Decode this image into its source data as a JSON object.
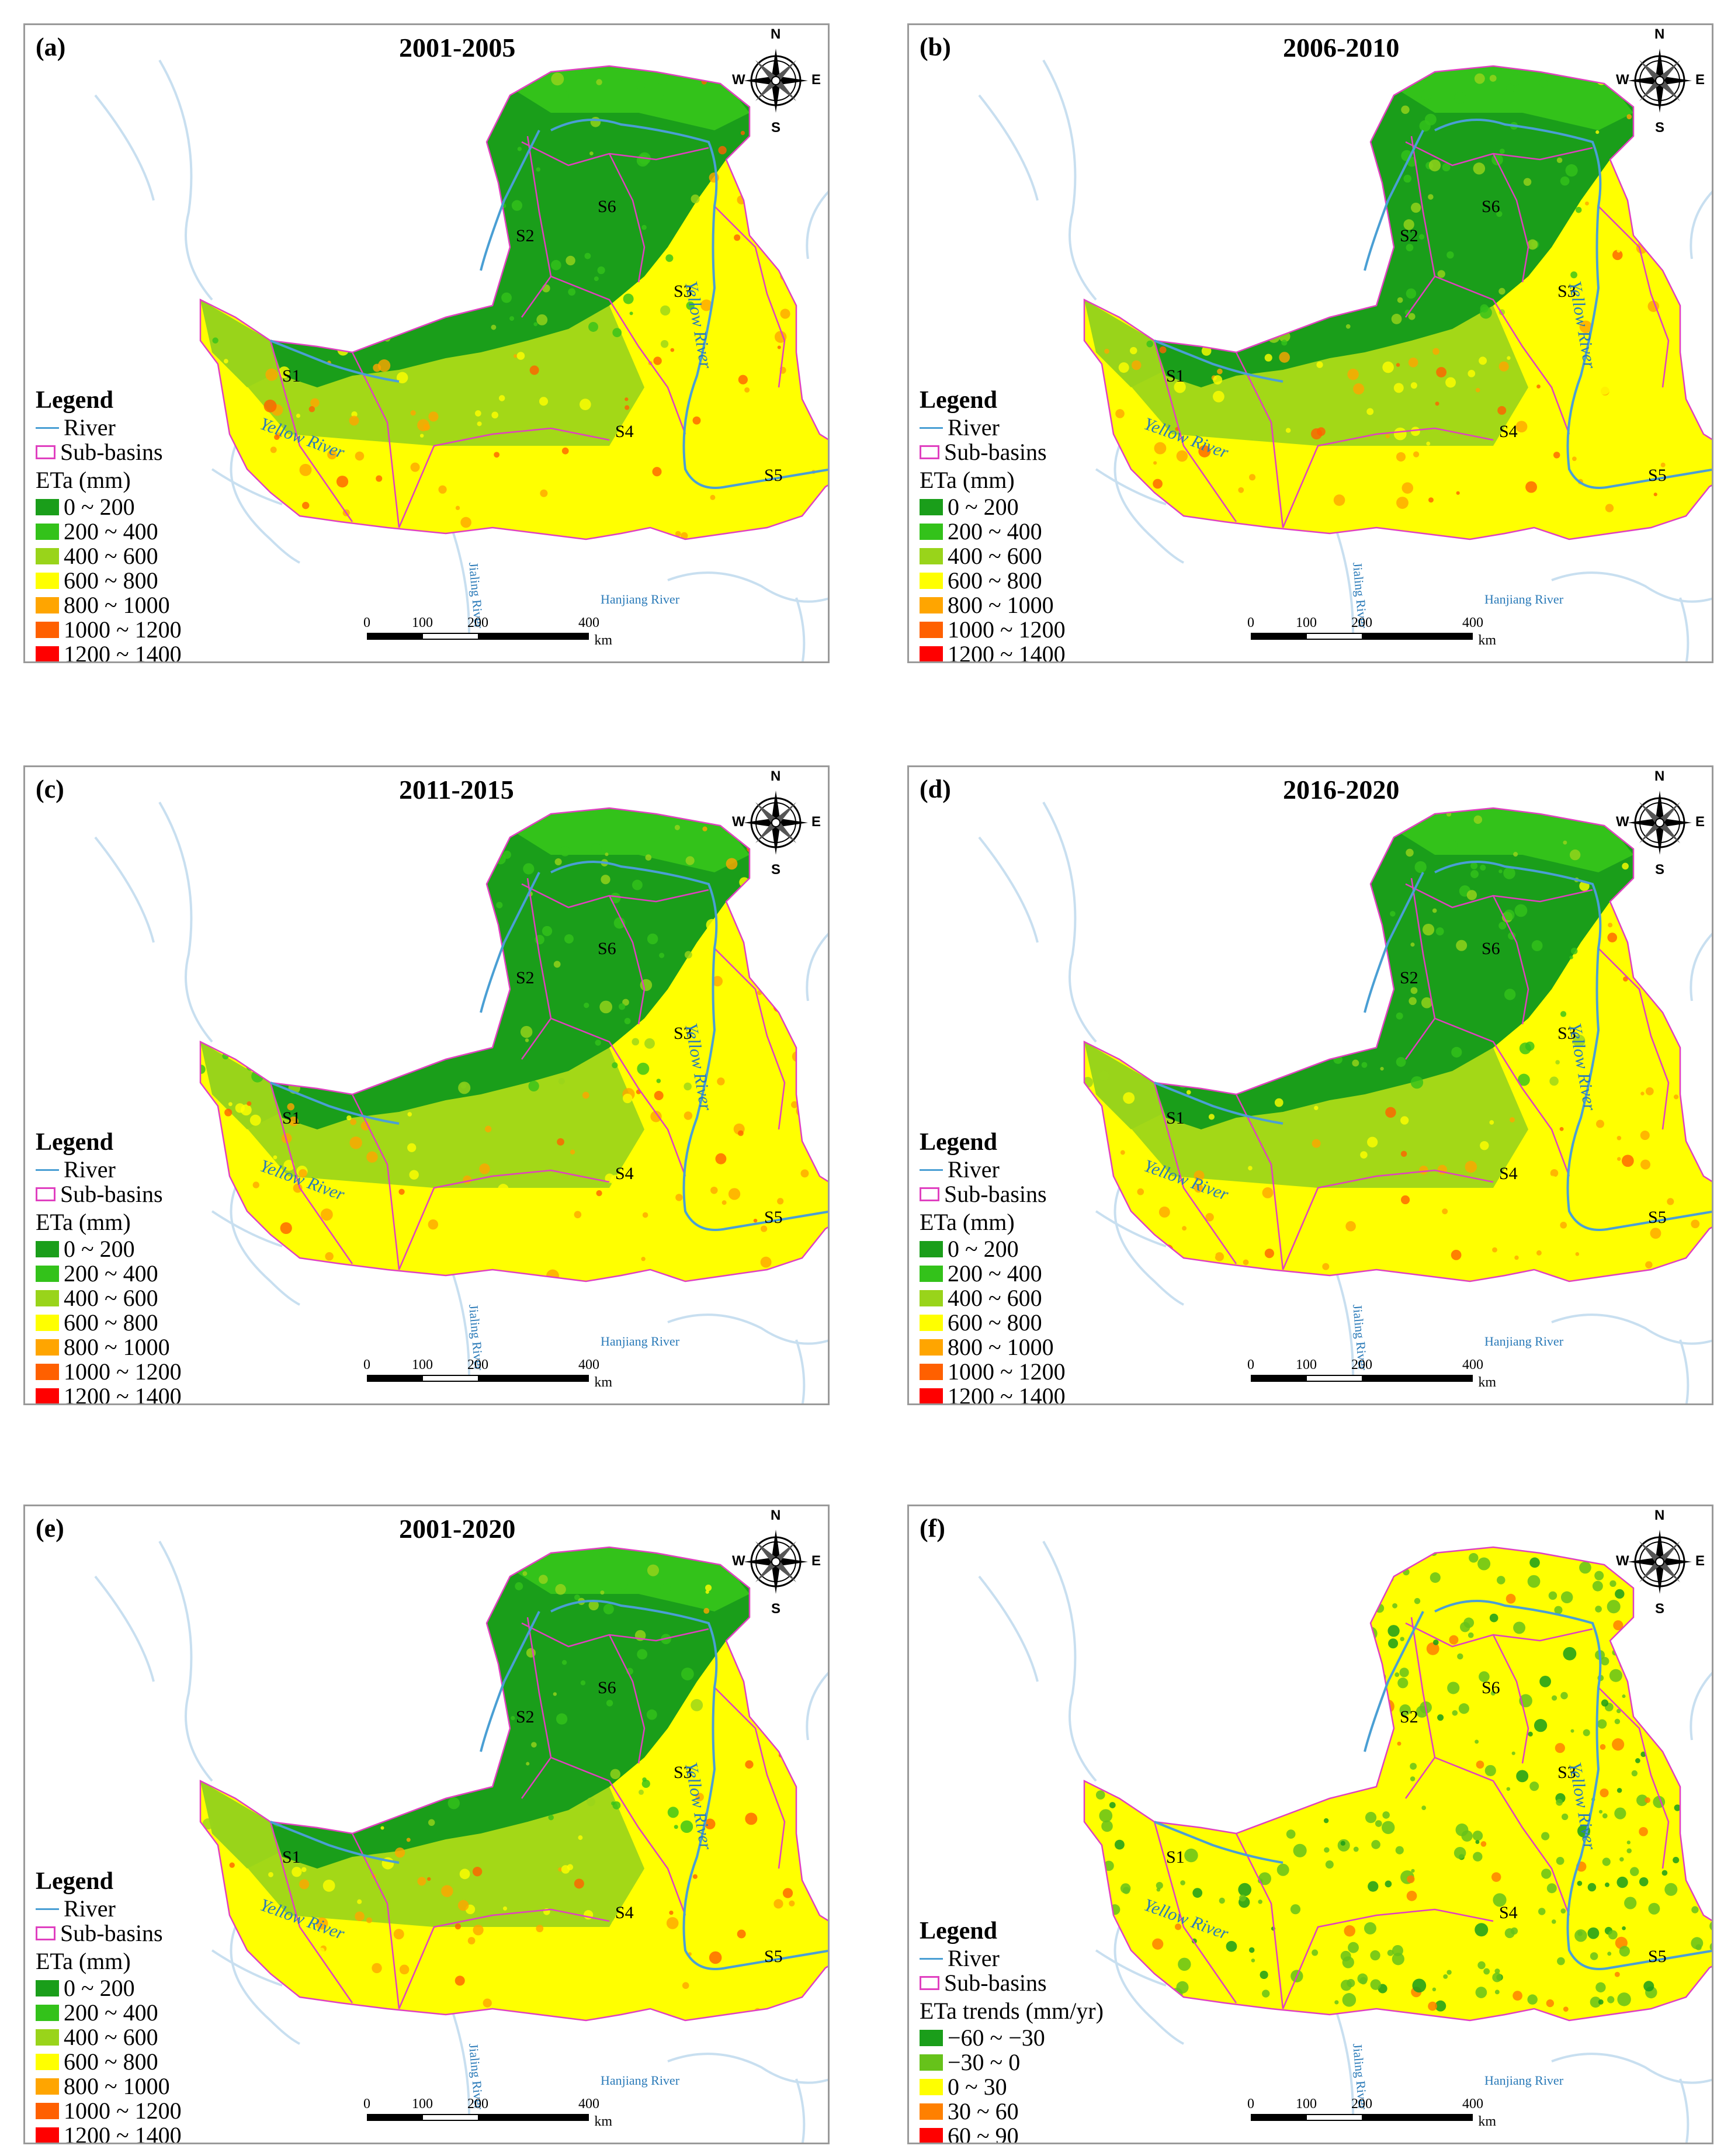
{
  "panels": [
    {
      "label": "(a)",
      "title": "2001-2005",
      "type": "eta"
    },
    {
      "label": "(b)",
      "title": "2006-2010",
      "type": "eta"
    },
    {
      "label": "(c)",
      "title": "2011-2015",
      "type": "eta"
    },
    {
      "label": "(d)",
      "title": "2016-2020",
      "type": "eta"
    },
    {
      "label": "(e)",
      "title": "2001-2020",
      "type": "eta"
    },
    {
      "label": "(f)",
      "title": "",
      "type": "trend"
    }
  ],
  "legend": {
    "title": "Legend",
    "river": "River",
    "subbasins": "Sub-basins",
    "eta_unit": "ETa (mm)",
    "eta_classes": [
      {
        "label": "0 ~ 200",
        "color": "#1a9e1a"
      },
      {
        "label": "200 ~ 400",
        "color": "#33c21a"
      },
      {
        "label": "400 ~ 600",
        "color": "#99d41a"
      },
      {
        "label": "600 ~ 800",
        "color": "#ffff00"
      },
      {
        "label": "800 ~ 1000",
        "color": "#ffa500"
      },
      {
        "label": "1000 ~ 1200",
        "color": "#ff6000"
      },
      {
        "label": "1200 ~ 1400",
        "color": "#ff0000"
      }
    ],
    "trend_unit": "ETa trends (mm/yr)",
    "trend_classes": [
      {
        "label": "−60 ~ −30",
        "color": "#1a9e1a"
      },
      {
        "label": "−30 ~ 0",
        "color": "#66c21a"
      },
      {
        "label": "0 ~ 30",
        "color": "#ffff00"
      },
      {
        "label": "30 ~ 60",
        "color": "#ff8000"
      },
      {
        "label": "60 ~ 90",
        "color": "#ff0000"
      }
    ]
  },
  "map_labels": {
    "subbasins": [
      "S1",
      "S2",
      "S3",
      "S4",
      "S5",
      "S6"
    ],
    "yellow_river": "Yellow River",
    "jialing_river": "Jialing River",
    "hanjiang_river": "Hanjiang River"
  },
  "scalebar": {
    "ticks": [
      "0",
      "100",
      "200",
      "400"
    ],
    "unit": "km"
  },
  "compass": {
    "n": "N",
    "s": "S",
    "e": "E",
    "w": "W"
  },
  "colors": {
    "river": "#4a9fd4",
    "subbasin_border": "#e040c0",
    "panel_border": "#9a9a9a",
    "background_river": "#c8dff0"
  }
}
